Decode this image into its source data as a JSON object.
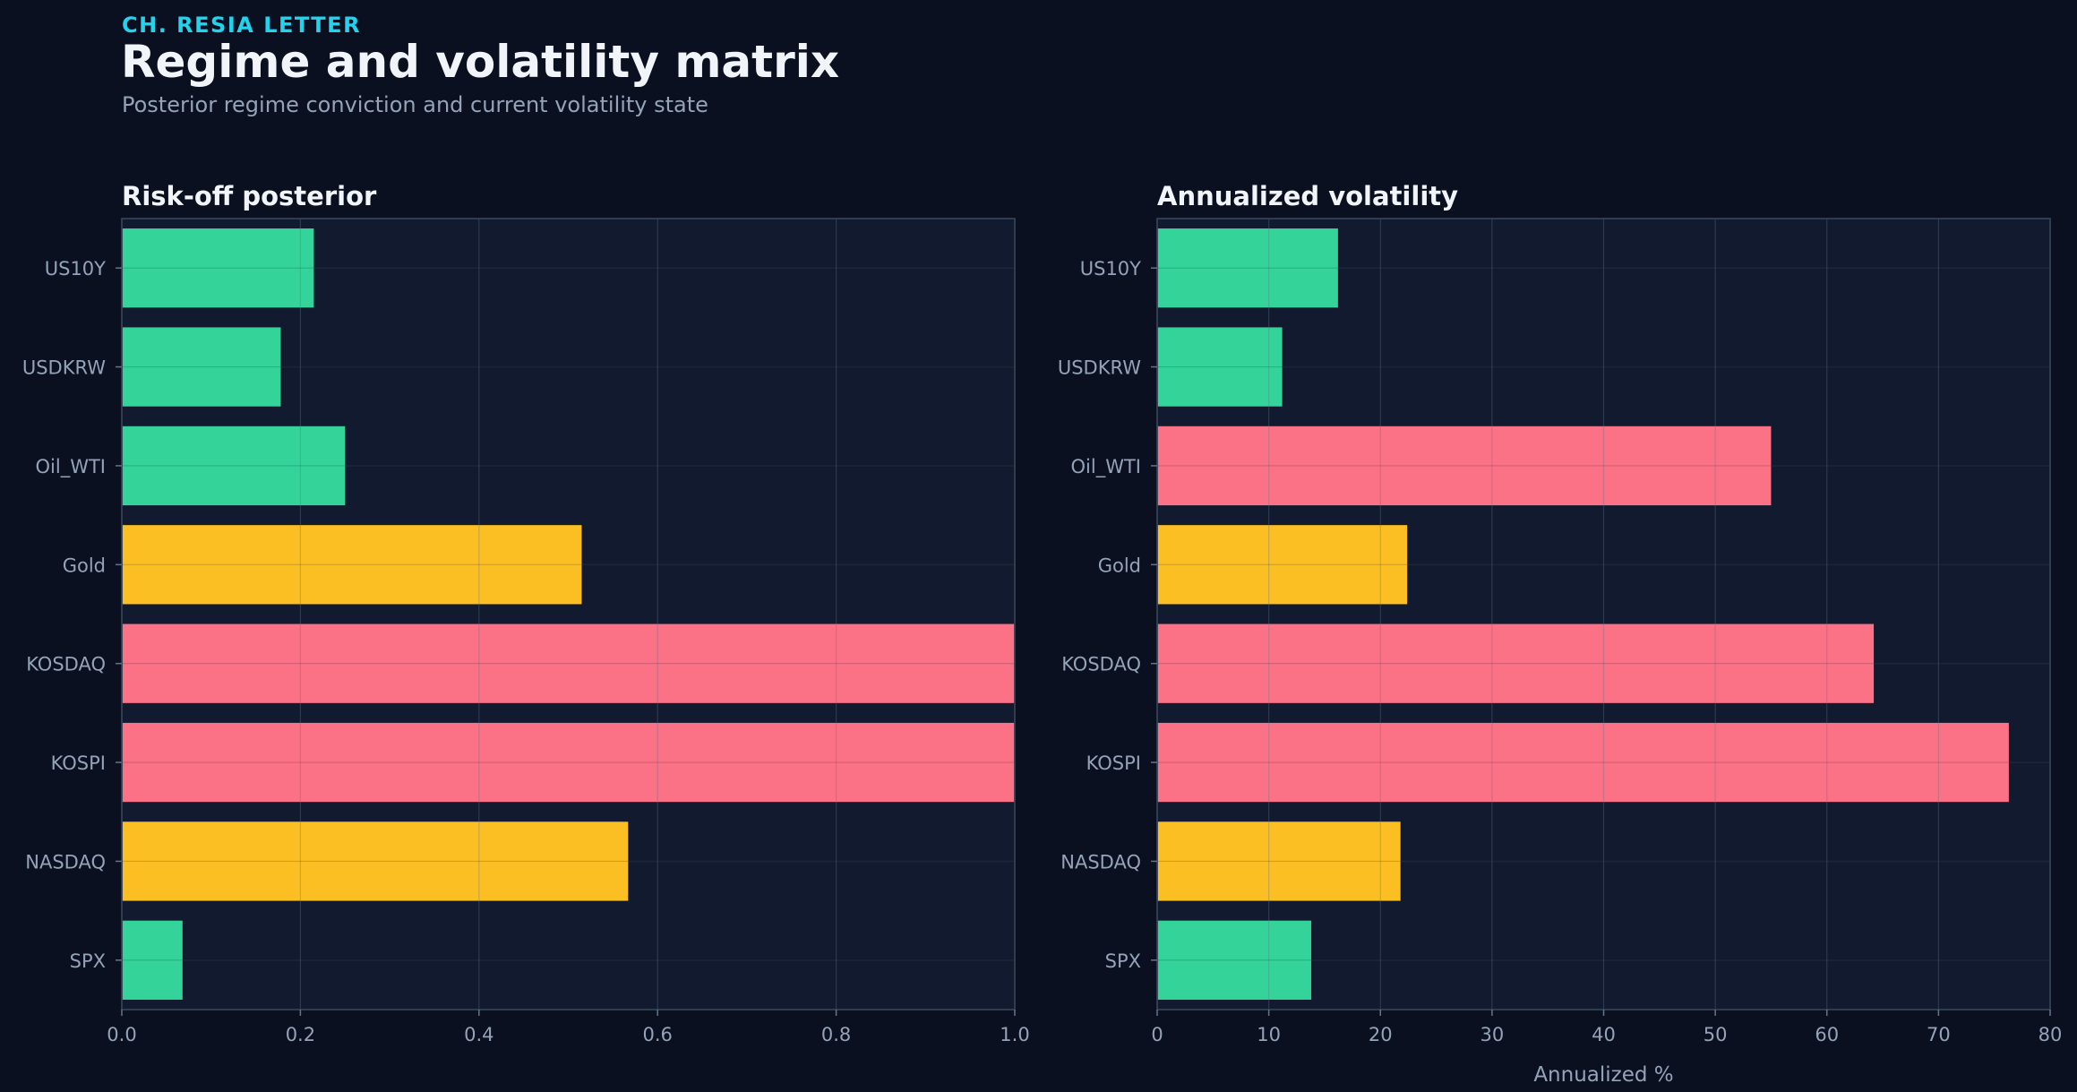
{
  "header": {
    "kicker": "CH. RESIA LETTER",
    "title": "Regime and volatility matrix",
    "subtitle": "Posterior regime conviction and current volatility state"
  },
  "colors": {
    "background": "#0b1020",
    "panel": "#111a2e",
    "green": "#34d399",
    "amber": "#fbbf24",
    "red": "#fb7185",
    "axis_text": "#94a3b8",
    "title_text": "#f1f5f9"
  },
  "chart_data": [
    {
      "type": "bar",
      "orientation": "horizontal",
      "title": "Risk-off posterior",
      "xlabel": "",
      "categories": [
        "US10Y",
        "USDKRW",
        "Oil_WTI",
        "Gold",
        "KOSDAQ",
        "KOSPI",
        "NASDAQ",
        "SPX"
      ],
      "values": [
        0.215,
        0.178,
        0.25,
        0.515,
        1.0,
        1.0,
        0.567,
        0.068
      ],
      "bar_colors": [
        "green",
        "green",
        "green",
        "amber",
        "red",
        "red",
        "amber",
        "green"
      ],
      "xlim": [
        0,
        1.0
      ],
      "xticks": [
        "0.0",
        "0.2",
        "0.4",
        "0.6",
        "0.8",
        "1.0"
      ],
      "grid": true
    },
    {
      "type": "bar",
      "orientation": "horizontal",
      "title": "Annualized volatility",
      "xlabel": "Annualized %",
      "categories": [
        "US10Y",
        "USDKRW",
        "Oil_WTI",
        "Gold",
        "KOSDAQ",
        "KOSPI",
        "NASDAQ",
        "SPX"
      ],
      "values": [
        16.2,
        11.2,
        55.0,
        22.4,
        64.2,
        76.3,
        21.8,
        13.8
      ],
      "bar_colors": [
        "green",
        "green",
        "red",
        "amber",
        "red",
        "red",
        "amber",
        "green"
      ],
      "xlim": [
        0,
        80
      ],
      "xticks": [
        "0",
        "10",
        "20",
        "30",
        "40",
        "50",
        "60",
        "70",
        "80"
      ],
      "grid": true
    }
  ]
}
